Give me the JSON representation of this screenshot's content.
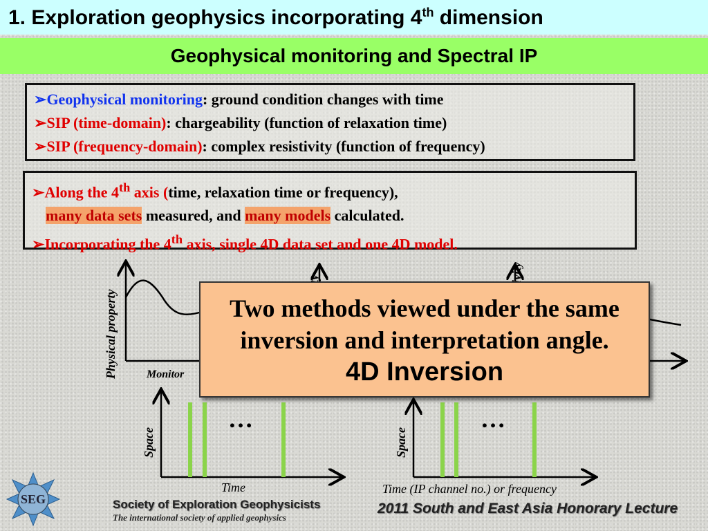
{
  "title": {
    "text": "1. Exploration geophysics incorporating 4",
    "sup": "th",
    "after": " dimension"
  },
  "subtitle": "Geophysical monitoring and Spectral IP",
  "box1": [
    {
      "key": "Geophysical monitoring",
      "rest": ": ground condition changes with time"
    },
    {
      "key": "SIP (time-domain)",
      "rest": ": chargeability (function of relaxation time)"
    },
    {
      "key": "SIP (frequency-domain)",
      "rest": ": complex resistivity (function of frequency)"
    }
  ],
  "box2": {
    "l1a": "Along the 4",
    "l1sup": "th",
    "l1b": " axis (",
    "l1c": "time, relaxation time or frequency),",
    "l2a": "many data sets",
    "l2b": " measured, and ",
    "l2c": "many models",
    "l2d": " calculated.",
    "l3a": "Incorporating the 4",
    "l3sup": "th",
    "l3b": " axis, single 4D data set and one 4D model."
  },
  "overlay": {
    "line1": "Two methods viewed under the same",
    "line2": "inversion and interpretation angle.",
    "line3": "4D Inversion"
  },
  "diagrams": {
    "ylabel_left": "Physical property",
    "ylabel_mid": "ty",
    "ylabel_right": "ivity",
    "xlabel_monitor": "Monitor",
    "space": "Space",
    "ellipsis": "…",
    "time": "Time",
    "time_ip": "Time (IP channel no.) or frequency",
    "bar_color": "#8bd44a"
  },
  "footer": {
    "seg_logo": "SEG",
    "society": "Society of Exploration Geophysicists",
    "tagline": "The international society of applied geophysics",
    "lecture": "2011 South and East Asia Honorary Lecture"
  }
}
